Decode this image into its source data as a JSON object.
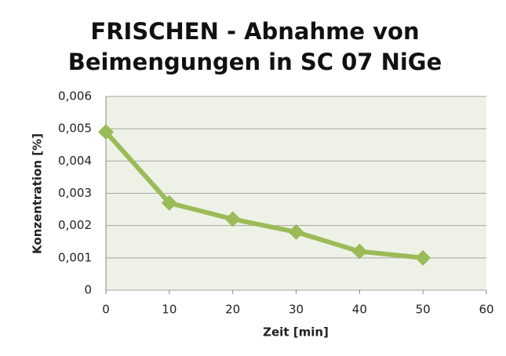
{
  "chart_data": {
    "type": "line",
    "title": [
      "FRISCHEN - Abnahme von",
      "Beimengungen in SC 07 NiGe"
    ],
    "x_label": "Zeit [min]",
    "y_label": "Konzentration [%]",
    "x": [
      0,
      10,
      20,
      30,
      40,
      50
    ],
    "series": [
      {
        "color": "#9bbb59",
        "values": [
          0.0049,
          0.0027,
          0.0022,
          0.0018,
          0.0012,
          0.001
        ]
      }
    ],
    "xlim": [
      0,
      60
    ],
    "xticks": [
      0,
      10,
      20,
      30,
      40,
      50,
      60
    ],
    "ylim": [
      0,
      0.006
    ],
    "yticks": [
      0,
      {
        "value": 0.001,
        "label": "0,001"
      },
      {
        "value": 0.002,
        "label": "0,002"
      },
      {
        "value": 0.003,
        "label": "0,003"
      },
      {
        "value": 0.004,
        "label": "0,004"
      },
      {
        "value": 0.005,
        "label": "0,005"
      },
      {
        "value": 0.006,
        "label": "0,006"
      }
    ],
    "grid": true
  }
}
